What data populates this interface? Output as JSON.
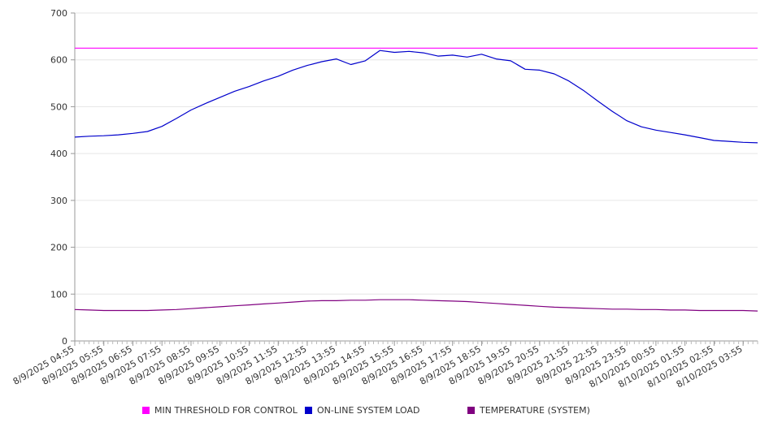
{
  "chart_data": {
    "type": "line",
    "title": "",
    "xlabel": "",
    "ylabel": "",
    "ylim": [
      0,
      700
    ],
    "yticks": [
      0,
      100,
      200,
      300,
      400,
      500,
      600,
      700
    ],
    "grid": true,
    "legend_position": "bottom",
    "xtick_labels": [
      "8/9/2025 04:55",
      "8/9/2025 05:55",
      "8/9/2025 06:55",
      "8/9/2025 07:55",
      "8/9/2025 08:55",
      "8/9/2025 09:55",
      "8/9/2025 10:55",
      "8/9/2025 11:55",
      "8/9/2025 12:55",
      "8/9/2025 13:55",
      "8/9/2025 14:55",
      "8/9/2025 15:55",
      "8/9/2025 16:55",
      "8/9/2025 17:55",
      "8/9/2025 18:55",
      "8/9/2025 19:55",
      "8/9/2025 20:55",
      "8/9/2025 21:55",
      "8/9/2025 22:55",
      "8/9/2025 23:55",
      "8/10/2025 00:55",
      "8/10/2025 01:55",
      "8/10/2025 02:55",
      "8/10/2025 03:55"
    ],
    "x": [
      "8/9/2025 04:55",
      "8/9/2025 05:25",
      "8/9/2025 05:55",
      "8/9/2025 06:25",
      "8/9/2025 06:55",
      "8/9/2025 07:25",
      "8/9/2025 07:55",
      "8/9/2025 08:25",
      "8/9/2025 08:55",
      "8/9/2025 09:25",
      "8/9/2025 09:55",
      "8/9/2025 10:25",
      "8/9/2025 10:55",
      "8/9/2025 11:25",
      "8/9/2025 11:55",
      "8/9/2025 12:25",
      "8/9/2025 12:55",
      "8/9/2025 13:25",
      "8/9/2025 13:55",
      "8/9/2025 14:25",
      "8/9/2025 14:55",
      "8/9/2025 15:25",
      "8/9/2025 15:55",
      "8/9/2025 16:25",
      "8/9/2025 16:55",
      "8/9/2025 17:25",
      "8/9/2025 17:55",
      "8/9/2025 18:25",
      "8/9/2025 18:55",
      "8/9/2025 19:25",
      "8/9/2025 19:55",
      "8/9/2025 20:25",
      "8/9/2025 20:55",
      "8/9/2025 21:25",
      "8/9/2025 21:55",
      "8/9/2025 22:25",
      "8/9/2025 22:55",
      "8/9/2025 23:25",
      "8/9/2025 23:55",
      "8/10/2025 00:25",
      "8/10/2025 00:55",
      "8/10/2025 01:25",
      "8/10/2025 01:55",
      "8/10/2025 02:25",
      "8/10/2025 02:55",
      "8/10/2025 03:25",
      "8/10/2025 03:55",
      "8/10/2025 04:25"
    ],
    "series": [
      {
        "name": "MIN THRESHOLD FOR CONTROL",
        "color": "#ff00ff",
        "values": [
          625,
          625,
          625,
          625,
          625,
          625,
          625,
          625,
          625,
          625,
          625,
          625,
          625,
          625,
          625,
          625,
          625,
          625,
          625,
          625,
          625,
          625,
          625,
          625,
          625,
          625,
          625,
          625,
          625,
          625,
          625,
          625,
          625,
          625,
          625,
          625,
          625,
          625,
          625,
          625,
          625,
          625,
          625,
          625,
          625,
          625,
          625,
          625
        ]
      },
      {
        "name": "ON-LINE SYSTEM LOAD",
        "color": "#0000cc",
        "values": [
          435,
          437,
          438,
          440,
          443,
          447,
          458,
          475,
          493,
          507,
          520,
          533,
          543,
          555,
          565,
          578,
          588,
          596,
          602,
          590,
          598,
          620,
          616,
          618,
          615,
          608,
          610,
          606,
          612,
          602,
          598,
          580,
          578,
          570,
          555,
          535,
          512,
          490,
          470,
          457,
          450,
          445,
          440,
          434,
          428,
          426,
          424,
          423
        ]
      },
      {
        "name": "TEMPERATURE (SYSTEM)",
        "color": "#800080",
        "values": [
          67,
          66,
          65,
          65,
          65,
          65,
          66,
          67,
          69,
          71,
          73,
          75,
          77,
          79,
          81,
          83,
          85,
          86,
          86,
          87,
          87,
          88,
          88,
          88,
          87,
          86,
          85,
          84,
          82,
          80,
          78,
          76,
          74,
          72,
          71,
          70,
          69,
          68,
          68,
          67,
          67,
          66,
          66,
          65,
          65,
          65,
          65,
          64
        ]
      }
    ]
  }
}
